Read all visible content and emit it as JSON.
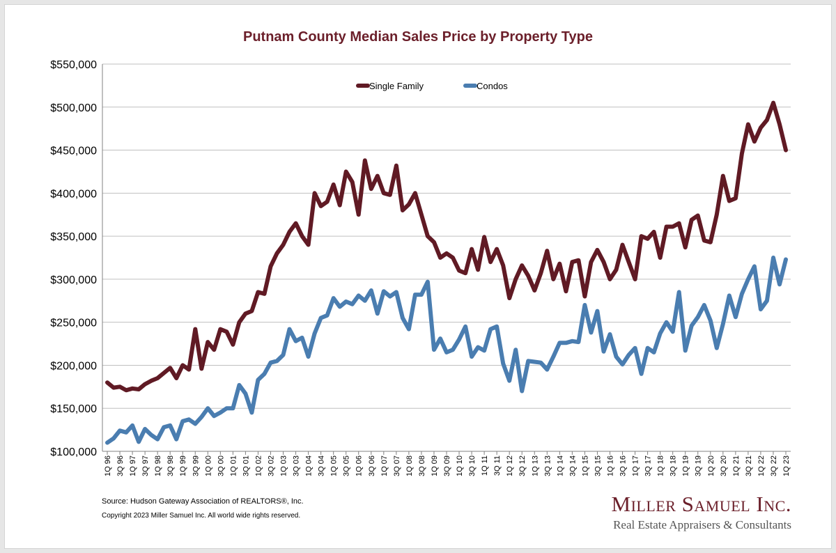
{
  "colors": {
    "single_family": "#601a24",
    "condos": "#4a7db0",
    "title": "#6b1f2a",
    "grid": "#bfbfbf"
  },
  "footer": {
    "source": "Source: Hudson Gateway Association of REALTORS®, Inc.",
    "copyright": "Copyright 2023 Miller Samuel Inc.  All world wide rights reserved."
  },
  "brand": {
    "name": "Miller Samuel Inc.",
    "tagline": "Real Estate Appraisers & Consultants"
  },
  "chart_data": {
    "type": "line",
    "title": "Putnam County Median Sales Price by Property Type",
    "xlabel": "",
    "ylabel": "",
    "ylim": [
      100000,
      550000
    ],
    "y_ticks": [
      100000,
      150000,
      200000,
      250000,
      300000,
      350000,
      400000,
      450000,
      500000,
      550000
    ],
    "y_tick_labels": [
      "$100,000",
      "$150,000",
      "$200,000",
      "$250,000",
      "$300,000",
      "$350,000",
      "$400,000",
      "$450,000",
      "$500,000",
      "$550,000"
    ],
    "grid": true,
    "legend": "top-center",
    "x_tick_labels": [
      "1Q 96",
      "3Q 96",
      "1Q 97",
      "3Q 97",
      "1Q 98",
      "3Q 98",
      "1Q 99",
      "3Q 99",
      "1Q 00",
      "3Q 00",
      "1Q 01",
      "3Q 01",
      "1Q 02",
      "3Q 02",
      "1Q 03",
      "3Q 03",
      "1Q 04",
      "3Q 04",
      "1Q 05",
      "3Q 05",
      "1Q 06",
      "3Q 06",
      "1Q 07",
      "3Q 07",
      "1Q 08",
      "3Q 08",
      "1Q 09",
      "3Q 09",
      "1Q 10",
      "3Q 10",
      "1Q 11",
      "3Q 11",
      "1Q 12",
      "3Q 12",
      "1Q 13",
      "3Q 13",
      "1Q 14",
      "3Q 14",
      "1Q 15",
      "3Q 15",
      "1Q 16",
      "3Q 16",
      "1Q 17",
      "3Q 17",
      "1Q 18",
      "3Q 18",
      "1Q 19",
      "3Q 19",
      "1Q 20",
      "3Q 20",
      "1Q 21",
      "3Q 21",
      "1Q 22",
      "3Q 22",
      "1Q 23"
    ],
    "series": [
      {
        "name": "Single Family",
        "values": [
          180000,
          174000,
          175000,
          171000,
          173000,
          172000,
          178000,
          182000,
          185000,
          191000,
          197000,
          185000,
          200000,
          195000,
          242000,
          196000,
          227000,
          218000,
          242000,
          239000,
          224000,
          250000,
          260000,
          263000,
          285000,
          283000,
          315000,
          330000,
          340000,
          355000,
          365000,
          350000,
          340000,
          400000,
          385000,
          390000,
          410000,
          386000,
          425000,
          413000,
          375000,
          438000,
          405000,
          420000,
          400000,
          398000,
          432000,
          380000,
          387000,
          400000,
          375000,
          350000,
          343000,
          325000,
          330000,
          325000,
          310000,
          307000,
          335000,
          311000,
          349000,
          320000,
          335000,
          316000,
          278000,
          300000,
          316000,
          304000,
          287000,
          307000,
          333000,
          300000,
          318000,
          286000,
          320000,
          322000,
          280000,
          320000,
          334000,
          320000,
          300000,
          311000,
          340000,
          320000,
          300000,
          350000,
          347000,
          355000,
          325000,
          361000,
          361000,
          365000,
          337000,
          369000,
          374000,
          345000,
          343000,
          375000,
          420000,
          391000,
          394000,
          446000,
          480000,
          460000,
          476000,
          485000,
          505000,
          480000,
          450000
        ]
      },
      {
        "name": "Condos",
        "values": [
          110000,
          115000,
          124000,
          122000,
          130000,
          111000,
          126000,
          119000,
          114000,
          128000,
          130000,
          114000,
          135000,
          137000,
          132000,
          140000,
          150000,
          141000,
          145000,
          150000,
          150000,
          177000,
          167000,
          145000,
          183000,
          190000,
          203000,
          205000,
          212000,
          242000,
          228000,
          232000,
          210000,
          237000,
          255000,
          258000,
          278000,
          268000,
          274000,
          271000,
          281000,
          275000,
          287000,
          260000,
          286000,
          280000,
          285000,
          255000,
          242000,
          282000,
          282000,
          297000,
          218000,
          231000,
          215000,
          218000,
          230000,
          245000,
          210000,
          221000,
          217000,
          242000,
          245000,
          202000,
          182000,
          218000,
          170000,
          205000,
          204000,
          203000,
          195000,
          210000,
          226000,
          226000,
          228000,
          227000,
          270000,
          238000,
          263000,
          216000,
          236000,
          210000,
          201000,
          212000,
          220000,
          190000,
          220000,
          215000,
          237000,
          250000,
          239000,
          285000,
          217000,
          246000,
          256000,
          270000,
          252000,
          220000,
          248000,
          281000,
          256000,
          283000,
          300000,
          315000,
          265000,
          275000,
          325000,
          294000,
          323000
        ]
      }
    ]
  }
}
